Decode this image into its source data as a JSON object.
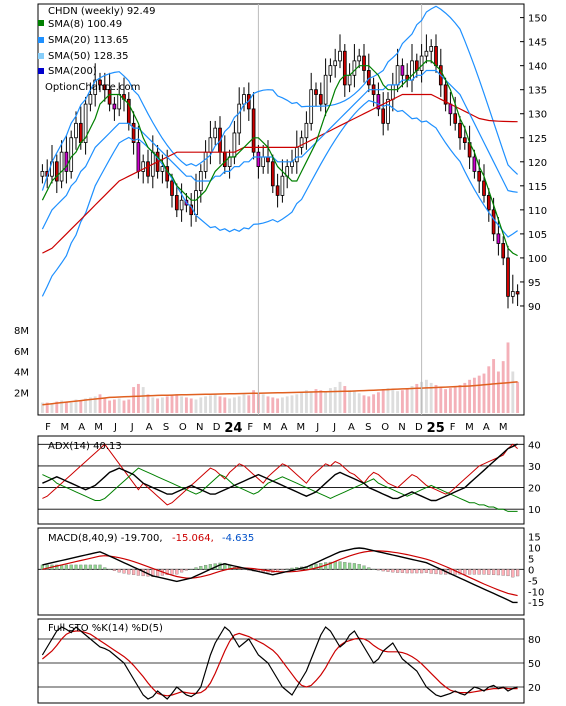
{
  "chart_data": [
    {
      "type": "candlestick",
      "panel": "price",
      "title": "CHDN (weekly) 92.49",
      "legend": [
        {
          "label": "SMA(8) 100.49",
          "color": "#008000"
        },
        {
          "label": "SMA(20) 113.65",
          "color": "#1e90ff"
        },
        {
          "label": "SMA(50) 128.35",
          "color": "#87cefa"
        },
        {
          "label": "SMA(200)",
          "color": "#0000cd"
        }
      ],
      "watermark": "OptionChance.com",
      "x_tick_labels": [
        "F",
        "M",
        "A",
        "M",
        "J",
        "J",
        "A",
        "S",
        "O",
        "N",
        "D",
        "24",
        "F",
        "M",
        "A",
        "M",
        "J",
        "J",
        "A",
        "S",
        "O",
        "N",
        "D",
        "25",
        "F",
        "M",
        "A",
        "M"
      ],
      "y_ticks": [
        90,
        95,
        100,
        105,
        110,
        115,
        120,
        125,
        130,
        135,
        140,
        145,
        150
      ],
      "ylim": [
        85,
        152
      ],
      "close": [
        118,
        117,
        120,
        116,
        122,
        118,
        125,
        128,
        124,
        132,
        134,
        137,
        136,
        135,
        132,
        131,
        134,
        133,
        128,
        124,
        118,
        120,
        117,
        122,
        118,
        119,
        116,
        113,
        110,
        112,
        111,
        109,
        114,
        118,
        122,
        125,
        127,
        122,
        119,
        121,
        126,
        132,
        134,
        131,
        122,
        119,
        121,
        120,
        115,
        113,
        117,
        119,
        120,
        123,
        125,
        128,
        135,
        134,
        132,
        138,
        140,
        141,
        143,
        136,
        138,
        141,
        142,
        139,
        136,
        134,
        131,
        128,
        133,
        136,
        140,
        138,
        137,
        141,
        139,
        142,
        143,
        144,
        140,
        136,
        132,
        130,
        128,
        125,
        124,
        121,
        118,
        116,
        113,
        110,
        105,
        103,
        100,
        92,
        93,
        92.49
      ],
      "sma8": [
        112,
        114,
        116,
        117,
        118,
        119,
        121,
        122,
        124,
        125,
        127,
        129,
        132,
        133,
        134,
        134,
        134,
        133,
        132,
        130,
        128,
        125,
        123,
        122,
        121,
        120,
        118,
        117,
        115,
        114,
        113,
        112,
        112,
        113,
        114,
        116,
        118,
        119,
        120,
        121,
        121,
        122,
        123,
        124,
        125,
        125,
        124,
        123,
        121,
        119,
        118,
        117,
        116,
        116,
        118,
        120,
        122,
        124,
        127,
        130,
        132,
        135,
        137,
        138,
        138,
        139,
        140,
        140,
        140,
        139,
        138,
        136,
        135,
        135,
        135,
        136,
        137,
        138,
        139,
        140,
        141,
        141,
        140,
        139,
        137,
        135,
        132,
        129,
        127,
        124,
        122,
        119,
        117,
        114,
        111,
        108,
        105,
        102,
        101,
        100.49
      ],
      "sma20": [
        106,
        108,
        110,
        111,
        112,
        113,
        115,
        116,
        118,
        119,
        121,
        123,
        124,
        125,
        126,
        127,
        128,
        128,
        128,
        127,
        127,
        126,
        125,
        124,
        123,
        122,
        121,
        120,
        119,
        118,
        117,
        117,
        116,
        116,
        116,
        116,
        117,
        117,
        118,
        118,
        119,
        119,
        120,
        120,
        121,
        121,
        121,
        121,
        121,
        120,
        120,
        120,
        120,
        121,
        121,
        122,
        123,
        124,
        125,
        126,
        127,
        128,
        129,
        130,
        131,
        132,
        133,
        134,
        135,
        135,
        135,
        135,
        136,
        136,
        136,
        137,
        137,
        137,
        138,
        138,
        139,
        139,
        139,
        138,
        137,
        136,
        135,
        134,
        132,
        130,
        128,
        126,
        124,
        122,
        120,
        118,
        116,
        114,
        113.8,
        113.65
      ],
      "sma50": [
        101,
        101.5,
        102,
        103,
        104,
        105,
        106,
        107,
        108,
        109,
        110,
        111,
        112,
        113,
        114,
        115,
        116,
        116.5,
        117,
        117.5,
        118,
        118.5,
        119,
        119.5,
        120,
        120.5,
        121,
        121.5,
        122,
        122,
        122,
        122,
        122,
        122,
        122,
        122,
        122,
        122,
        122,
        122,
        122,
        122.5,
        123,
        123,
        123,
        123,
        123,
        123,
        123,
        123,
        123,
        123,
        123,
        123,
        123.5,
        124,
        124.5,
        125,
        125.5,
        126,
        126.5,
        127,
        127.5,
        128,
        128.5,
        129,
        129.5,
        130,
        130.5,
        131,
        131.5,
        132,
        132.5,
        133,
        133.5,
        134,
        134,
        134,
        134,
        134,
        134,
        134,
        133.5,
        133,
        132.5,
        132,
        131.5,
        131,
        130.5,
        130,
        129.5,
        129,
        128.8,
        128.6,
        128.5,
        128.45,
        128.4,
        128.38,
        128.36,
        128.35
      ]
    },
    {
      "type": "bar",
      "panel": "volume",
      "y_ticks": [
        "2M",
        "4M",
        "6M",
        "8M"
      ],
      "ylim": [
        0,
        8
      ],
      "values": [
        1,
        1,
        0.9,
        1.1,
        1.2,
        1.1,
        1,
        1.3,
        1.2,
        1.4,
        1.5,
        1.6,
        1.8,
        1.5,
        1.2,
        1.3,
        1.4,
        1.2,
        1.3,
        2.5,
        2.8,
        2.5,
        1.8,
        1.5,
        1.4,
        1.5,
        1.6,
        1.7,
        1.8,
        1.6,
        1.5,
        1.4,
        1.3,
        1.5,
        1.6,
        1.7,
        1.8,
        1.6,
        1.5,
        1.4,
        1.5,
        1.6,
        1.8,
        1.7,
        2.2,
        1.9,
        1.8,
        1.6,
        1.5,
        1.4,
        1.5,
        1.6,
        1.7,
        1.8,
        2,
        2.2,
        2.1,
        2.3,
        2.2,
        2.1,
        2.4,
        2.5,
        3,
        2.6,
        2.2,
        2.1,
        1.9,
        1.7,
        1.6,
        1.8,
        2,
        2.2,
        2.4,
        2.3,
        2.1,
        2.2,
        2.4,
        2.6,
        2.8,
        3,
        3.2,
        2.9,
        2.7,
        2.5,
        2.3,
        2.4,
        2.6,
        2.7,
        2.9,
        3.2,
        3.4,
        3.6,
        3.8,
        4.5,
        5.2,
        4,
        5,
        6.8,
        4,
        3
      ],
      "average": [
        0.8,
        0.85,
        0.9,
        0.95,
        1,
        1.05,
        1.1,
        1.15,
        1.2,
        1.25,
        1.3,
        1.35,
        1.4,
        1.45,
        1.5,
        1.52,
        1.54,
        1.56,
        1.58,
        1.6,
        1.62,
        1.64,
        1.66,
        1.68,
        1.7,
        1.71,
        1.72,
        1.73,
        1.74,
        1.75,
        1.76,
        1.77,
        1.78,
        1.79,
        1.8,
        1.81,
        1.82,
        1.83,
        1.84,
        1.85,
        1.86,
        1.87,
        1.88,
        1.89,
        1.9,
        1.91,
        1.92,
        1.93,
        1.94,
        1.95,
        1.96,
        1.97,
        1.98,
        1.99,
        2,
        2.01,
        2.02,
        2.03,
        2.04,
        2.05,
        2.06,
        2.07,
        2.08,
        2.09,
        2.1,
        2.12,
        2.14,
        2.16,
        2.18,
        2.2,
        2.22,
        2.24,
        2.26,
        2.28,
        2.3,
        2.32,
        2.34,
        2.36,
        2.38,
        2.4,
        2.42,
        2.44,
        2.46,
        2.48,
        2.5,
        2.52,
        2.54,
        2.56,
        2.58,
        2.6,
        2.64,
        2.68,
        2.72,
        2.76,
        2.8,
        2.84,
        2.88,
        2.92,
        2.96,
        3
      ]
    },
    {
      "type": "line",
      "panel": "adx",
      "legend": "ADX(14) 40.13",
      "y_ticks": [
        10,
        20,
        30,
        40
      ],
      "ylim": [
        5,
        42
      ],
      "adx": [
        22,
        23,
        24,
        25,
        24,
        23,
        22,
        21,
        20,
        19,
        20,
        21,
        23,
        25,
        27,
        28,
        29,
        28,
        27,
        26,
        24,
        22,
        21,
        20,
        19,
        18,
        17,
        17,
        18,
        19,
        20,
        21,
        20,
        19,
        18,
        17,
        17,
        18,
        19,
        20,
        21,
        22,
        23,
        24,
        25,
        26,
        25,
        24,
        23,
        22,
        21,
        20,
        19,
        18,
        17,
        16,
        17,
        18,
        20,
        22,
        24,
        26,
        27,
        26,
        25,
        24,
        23,
        22,
        20,
        19,
        18,
        17,
        16,
        15,
        15,
        16,
        17,
        18,
        17,
        16,
        15,
        14,
        14,
        15,
        16,
        17,
        18,
        19,
        20,
        22,
        24,
        26,
        28,
        30,
        32,
        34,
        36,
        38,
        39,
        40.13
      ],
      "plus_di": [
        15,
        16,
        18,
        20,
        22,
        24,
        26,
        28,
        30,
        32,
        34,
        36,
        38,
        40,
        37,
        34,
        31,
        28,
        25,
        22,
        19,
        22,
        20,
        18,
        16,
        14,
        12,
        13,
        15,
        17,
        19,
        21,
        23,
        25,
        27,
        29,
        28,
        26,
        24,
        27,
        29,
        31,
        30,
        28,
        26,
        24,
        22,
        25,
        27,
        29,
        31,
        30,
        28,
        26,
        24,
        22,
        25,
        27,
        29,
        31,
        30,
        32,
        31,
        29,
        27,
        26,
        24,
        22,
        25,
        27,
        26,
        24,
        22,
        21,
        20,
        22,
        24,
        26,
        25,
        23,
        21,
        20,
        19,
        18,
        17,
        18,
        20,
        22,
        24,
        26,
        28,
        30,
        31,
        32,
        33,
        34,
        35,
        38,
        40,
        38
      ],
      "minus_di": [
        26,
        25,
        24,
        22,
        21,
        20,
        19,
        18,
        17,
        16,
        15,
        14,
        14,
        15,
        17,
        19,
        21,
        23,
        25,
        27,
        29,
        28,
        27,
        26,
        25,
        24,
        23,
        22,
        21,
        20,
        19,
        18,
        17,
        18,
        20,
        22,
        24,
        26,
        25,
        23,
        21,
        20,
        19,
        18,
        17,
        18,
        20,
        22,
        23,
        24,
        25,
        24,
        23,
        22,
        21,
        20,
        19,
        18,
        17,
        16,
        15,
        16,
        17,
        18,
        19,
        20,
        21,
        22,
        23,
        24,
        22,
        21,
        20,
        19,
        18,
        17,
        16,
        17,
        18,
        19,
        20,
        21,
        20,
        19,
        18,
        17,
        16,
        15,
        14,
        13,
        13,
        12,
        12,
        11,
        11,
        10,
        10,
        9,
        9,
        9
      ]
    },
    {
      "type": "line",
      "panel": "macd",
      "legend": "MACD(8,40,9) -19.700,",
      "legend_macd_value": "-15.064,",
      "legend_signal_value": "-4.635",
      "y_ticks": [
        "15",
        "10",
        "5",
        "0",
        "-5",
        "-10",
        "-15"
      ],
      "ylim": [
        -19,
        17
      ],
      "macd": [
        2,
        2.5,
        3,
        3.5,
        4,
        4.5,
        5,
        5.5,
        6,
        6.5,
        7,
        7.5,
        8,
        7,
        6,
        5,
        4,
        3,
        2,
        1,
        0,
        -1,
        -2,
        -3,
        -3.5,
        -4,
        -4.5,
        -5,
        -5.5,
        -5,
        -4.5,
        -4,
        -3,
        -2,
        -1,
        0,
        1,
        2,
        2.5,
        2,
        1.5,
        1,
        0.5,
        0,
        -0.5,
        -1,
        -1.5,
        -2,
        -2.5,
        -2,
        -1.5,
        -1,
        -0.5,
        0,
        0.5,
        1,
        2,
        3,
        4,
        5,
        6,
        7,
        8,
        8.5,
        9,
        9.5,
        9.7,
        9.5,
        9,
        8.5,
        8,
        7.5,
        7,
        6.5,
        6,
        5.5,
        5,
        4.5,
        4,
        3.5,
        3,
        2,
        1,
        0,
        -1,
        -2,
        -3,
        -4,
        -5,
        -6,
        -7,
        -8,
        -9,
        -10,
        -11,
        -12,
        -13,
        -14,
        -15.064,
        -15.064
      ],
      "signal": [
        0,
        0.5,
        1,
        1.5,
        2,
        2.5,
        3,
        3.5,
        4,
        4.5,
        5,
        5.5,
        6,
        6.2,
        6,
        5.7,
        5.3,
        4.8,
        4.2,
        3.5,
        2.8,
        2,
        1.2,
        0.4,
        -0.4,
        -1.2,
        -2,
        -2.7,
        -3.3,
        -3.7,
        -4,
        -4,
        -3.8,
        -3.4,
        -2.9,
        -2.3,
        -1.6,
        -0.9,
        -0.3,
        0.2,
        0.5,
        0.6,
        0.6,
        0.5,
        0.3,
        0,
        -0.3,
        -0.6,
        -0.9,
        -1.1,
        -1.2,
        -1.2,
        -1.1,
        -0.9,
        -0.6,
        -0.3,
        0.1,
        0.6,
        1.2,
        1.9,
        2.7,
        3.6,
        4.5,
        5.3,
        6.1,
        6.8,
        7.4,
        7.9,
        8.2,
        8.4,
        8.4,
        8.3,
        8.1,
        7.8,
        7.5,
        7.1,
        6.7,
        6.2,
        5.7,
        5.2,
        4.6,
        3.9,
        3.1,
        2.2,
        1.3,
        0.3,
        -0.7,
        -1.7,
        -2.7,
        -3.7,
        -4.7,
        -5.7,
        -6.7,
        -7.6,
        -8.5,
        -9.4,
        -10.2,
        -11,
        -11.5,
        -12
      ]
    },
    {
      "type": "line",
      "panel": "stochastic",
      "legend": "Full STO %K(14) %D(5)",
      "y_ticks": [
        20,
        50,
        80
      ],
      "ylim": [
        0,
        100
      ],
      "k": [
        60,
        70,
        80,
        90,
        95,
        92,
        88,
        95,
        90,
        85,
        80,
        75,
        70,
        68,
        65,
        60,
        55,
        50,
        40,
        30,
        20,
        10,
        5,
        8,
        15,
        10,
        5,
        12,
        20,
        15,
        10,
        8,
        12,
        20,
        40,
        60,
        75,
        85,
        95,
        90,
        80,
        70,
        75,
        80,
        70,
        60,
        55,
        50,
        40,
        30,
        20,
        15,
        10,
        20,
        30,
        40,
        55,
        70,
        85,
        95,
        90,
        80,
        70,
        75,
        85,
        90,
        80,
        70,
        60,
        50,
        55,
        65,
        70,
        75,
        65,
        55,
        50,
        45,
        40,
        30,
        20,
        15,
        10,
        8,
        10,
        12,
        15,
        12,
        10,
        15,
        20,
        18,
        15,
        20,
        22,
        18,
        20,
        15,
        18,
        20
      ],
      "d": [
        55,
        60,
        65,
        72,
        80,
        86,
        89,
        90,
        90,
        88,
        86,
        82,
        78,
        74,
        70,
        66,
        62,
        58,
        53,
        47,
        40,
        33,
        25,
        18,
        12,
        10,
        9,
        10,
        12,
        14,
        13,
        12,
        12,
        13,
        17,
        25,
        37,
        51,
        65,
        77,
        85,
        87,
        85,
        83,
        80,
        77,
        74,
        70,
        66,
        60,
        52,
        44,
        36,
        28,
        22,
        20,
        22,
        28,
        35,
        44,
        55,
        65,
        72,
        76,
        78,
        80,
        81,
        80,
        77,
        72,
        68,
        65,
        64,
        64,
        64,
        63,
        61,
        58,
        54,
        49,
        43,
        37,
        31,
        25,
        20,
        16,
        14,
        13,
        13,
        13,
        14,
        15,
        16,
        17,
        18,
        18,
        19,
        18,
        18,
        18
      ]
    }
  ]
}
